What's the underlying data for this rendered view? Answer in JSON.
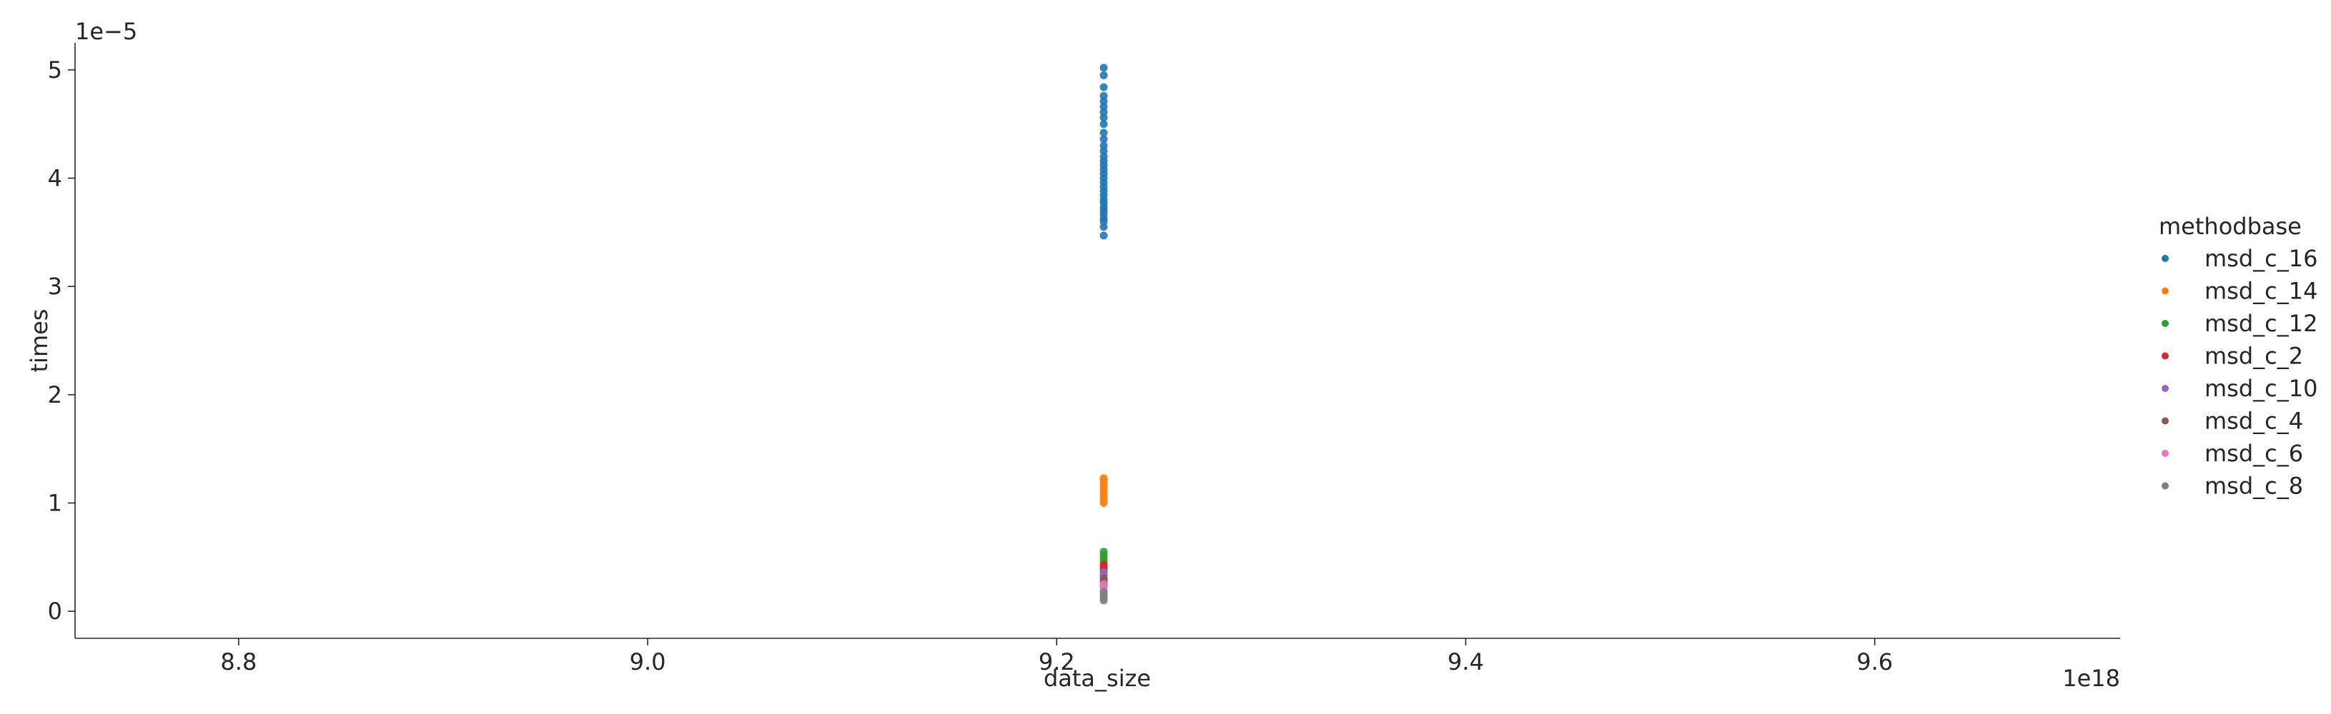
{
  "chart_data": {
    "type": "scatter",
    "title": "",
    "xlabel": "data_size",
    "ylabel": "times",
    "x_offset_label": "1e18",
    "y_offset_label": "1e−5",
    "xlim": [
      8.72e+18,
      9.72e+18
    ],
    "ylim": [
      -2.5e-06,
      5.25e-05
    ],
    "x_ticks": [
      8.8e+18,
      9e+18,
      9.2e+18,
      9.4e+18,
      9.6e+18
    ],
    "x_tick_labels": [
      "8.8",
      "9.0",
      "9.2",
      "9.4",
      "9.6"
    ],
    "y_ticks": [
      0,
      1e-05,
      2e-05,
      3e-05,
      4e-05,
      5e-05
    ],
    "y_tick_labels": [
      "0",
      "1",
      "2",
      "3",
      "4",
      "5"
    ],
    "grid": false,
    "legend_title": "methodbase",
    "legend_position": "right",
    "series": [
      {
        "name": "msd_c_16",
        "color": "#1f77b4",
        "x": 9.223e+18,
        "y": [
          3.47e-05,
          3.55e-05,
          3.6e-05,
          3.63e-05,
          3.67e-05,
          3.7e-05,
          3.73e-05,
          3.77e-05,
          3.8e-05,
          3.84e-05,
          3.88e-05,
          3.92e-05,
          3.96e-05,
          4e-05,
          4.04e-05,
          4.08e-05,
          4.12e-05,
          4.16e-05,
          4.2e-05,
          4.25e-05,
          4.3e-05,
          4.36e-05,
          4.42e-05,
          4.5e-05,
          4.56e-05,
          4.61e-05,
          4.66e-05,
          4.71e-05,
          4.76e-05,
          4.84e-05,
          4.95e-05,
          5.02e-05
        ]
      },
      {
        "name": "msd_c_14",
        "color": "#ff7f0e",
        "x": 9.223e+18,
        "y": [
          1e-05,
          1.03e-05,
          1.06e-05,
          1.09e-05,
          1.12e-05,
          1.15e-05,
          1.18e-05,
          1.21e-05,
          1.23e-05
        ]
      },
      {
        "name": "msd_c_12",
        "color": "#2ca02c",
        "x": 9.223e+18,
        "y": [
          4e-06,
          4.3e-06,
          4.6e-06,
          4.9e-06,
          5.2e-06,
          5.5e-06
        ]
      },
      {
        "name": "msd_c_2",
        "color": "#d62728",
        "x": 9.223e+18,
        "y": [
          3.4e-06,
          3.7e-06,
          4e-06,
          4.3e-06
        ]
      },
      {
        "name": "msd_c_10",
        "color": "#9467bd",
        "x": 9.223e+18,
        "y": [
          2.7e-06,
          3e-06,
          3.3e-06,
          3.6e-06
        ]
      },
      {
        "name": "msd_c_4",
        "color": "#8c564b",
        "x": 9.223e+18,
        "y": [
          2.4e-06,
          2.7e-06,
          3e-06
        ]
      },
      {
        "name": "msd_c_6",
        "color": "#e377c2",
        "x": 9.223e+18,
        "y": [
          1.9e-06,
          2.2e-06,
          2.5e-06
        ]
      },
      {
        "name": "msd_c_8",
        "color": "#7f7f7f",
        "x": 9.223e+18,
        "y": [
          1e-06,
          1.2e-06,
          1.4e-06,
          1.6e-06,
          1.8e-06
        ]
      }
    ]
  }
}
